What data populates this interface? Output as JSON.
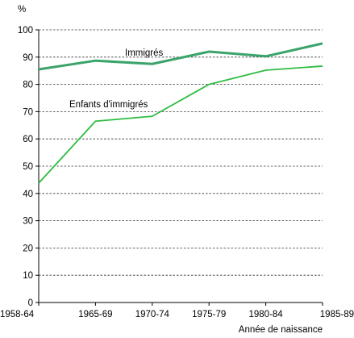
{
  "chart_data": {
    "type": "line",
    "ylabel": "%",
    "xlabel": "Année de naissance",
    "ylim": [
      0,
      100
    ],
    "yticks": [
      0,
      10,
      20,
      30,
      40,
      50,
      60,
      70,
      80,
      90,
      100
    ],
    "grid": "horizontal-dashed",
    "categories": [
      "1958-64",
      "1965-69",
      "1970-74",
      "1975-79",
      "1980-84",
      "1985-89"
    ],
    "series": [
      {
        "name": "Immigrés",
        "values": [
          85.5,
          88.7,
          87.5,
          92,
          90.3,
          95
        ],
        "color": "#3aa46a"
      },
      {
        "name": "Enfants d'immigrés",
        "values": [
          43.8,
          66.5,
          68.3,
          80,
          85.2,
          86.7
        ],
        "color": "#2ebd41"
      }
    ]
  }
}
